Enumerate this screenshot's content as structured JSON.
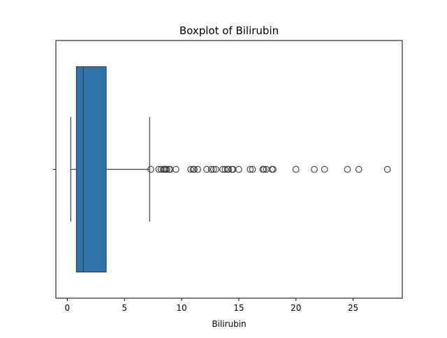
{
  "chart_data": {
    "type": "boxplot",
    "title": "Boxplot of Bilirubin",
    "xlabel": "Bilirubin",
    "ylabel": "",
    "orientation": "horizontal",
    "xlim": [
      -1,
      29.3
    ],
    "xticks": [
      0,
      5,
      10,
      15,
      20,
      25
    ],
    "xtick_labels": [
      "0",
      "5",
      "10",
      "15",
      "20",
      "25"
    ],
    "stats": {
      "whisker_low": 0.3,
      "q1": 0.8,
      "median": 1.4,
      "q3": 3.4,
      "whisker_high": 7.2
    },
    "outliers": [
      7.3,
      8.0,
      8.2,
      8.4,
      8.5,
      8.6,
      8.7,
      8.9,
      9.0,
      9.5,
      10.8,
      11.0,
      11.1,
      11.4,
      12.2,
      12.6,
      12.8,
      13.0,
      13.6,
      13.8,
      14.0,
      14.1,
      14.4,
      14.5,
      15.0,
      16.0,
      16.2,
      17.1,
      17.2,
      17.4,
      17.9,
      18.0,
      20.0,
      21.6,
      22.5,
      24.5,
      25.5,
      28.0
    ],
    "grid": false,
    "colors": {
      "box_fill": "#2f75ab",
      "box_edge": "#3d3d3d",
      "outlier_edge": "#3d3d3d"
    }
  }
}
